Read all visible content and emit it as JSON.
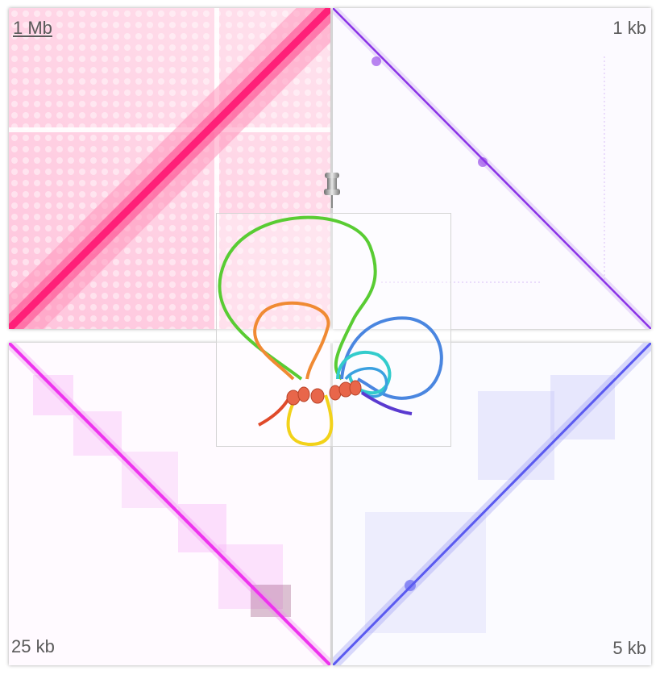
{
  "panels": [
    {
      "id": "tl",
      "scale_label": "1 Mb",
      "color": "#ff1f78",
      "underlined": true
    },
    {
      "id": "tr",
      "scale_label": "1 kb",
      "color": "#8a33e6",
      "underlined": false
    },
    {
      "id": "bl",
      "scale_label": "25 kb",
      "color": "#ee33ee",
      "underlined": false
    },
    {
      "id": "br",
      "scale_label": "5 kb",
      "color": "#5a5af0",
      "underlined": false
    }
  ],
  "icons": {
    "pin": "pushpin-icon",
    "structure": "chromatin-loop-model"
  }
}
